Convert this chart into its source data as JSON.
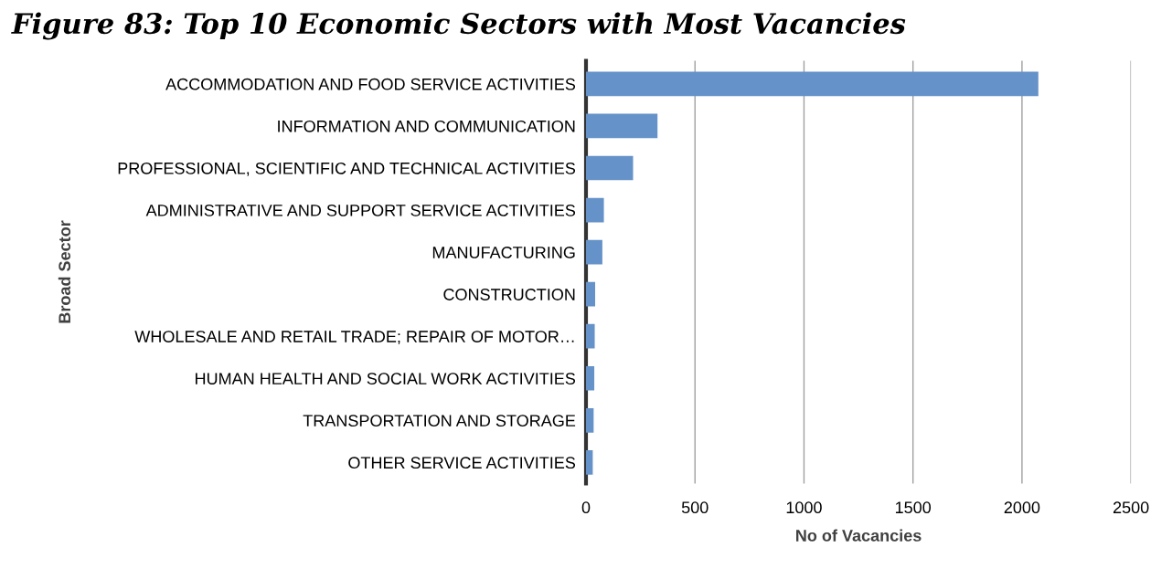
{
  "chart_data": {
    "type": "bar",
    "orientation": "horizontal",
    "title": "Figure 83: Top 10 Economic Sectors with Most Vacancies",
    "categories": [
      "ACCOMMODATION AND FOOD SERVICE ACTIVITIES",
      "INFORMATION AND COMMUNICATION",
      "PROFESSIONAL, SCIENTIFIC AND TECHNICAL ACTIVITIES",
      "ADMINISTRATIVE AND SUPPORT SERVICE ACTIVITIES",
      "MANUFACTURING",
      "CONSTRUCTION",
      "WHOLESALE AND RETAIL TRADE; REPAIR OF MOTOR…",
      "HUMAN HEALTH AND SOCIAL WORK ACTIVITIES",
      "TRANSPORTATION AND STORAGE",
      "OTHER SERVICE ACTIVITIES"
    ],
    "values": [
      2075,
      328,
      216,
      82,
      75,
      42,
      40,
      38,
      35,
      31
    ],
    "color": "#6592c8",
    "xlabel": "No of Vacancies",
    "ylabel": "Broad Sector",
    "xlim": [
      0,
      2500
    ],
    "xticks": [
      0,
      500,
      1000,
      1500,
      2000,
      2500
    ],
    "grid": "x"
  }
}
